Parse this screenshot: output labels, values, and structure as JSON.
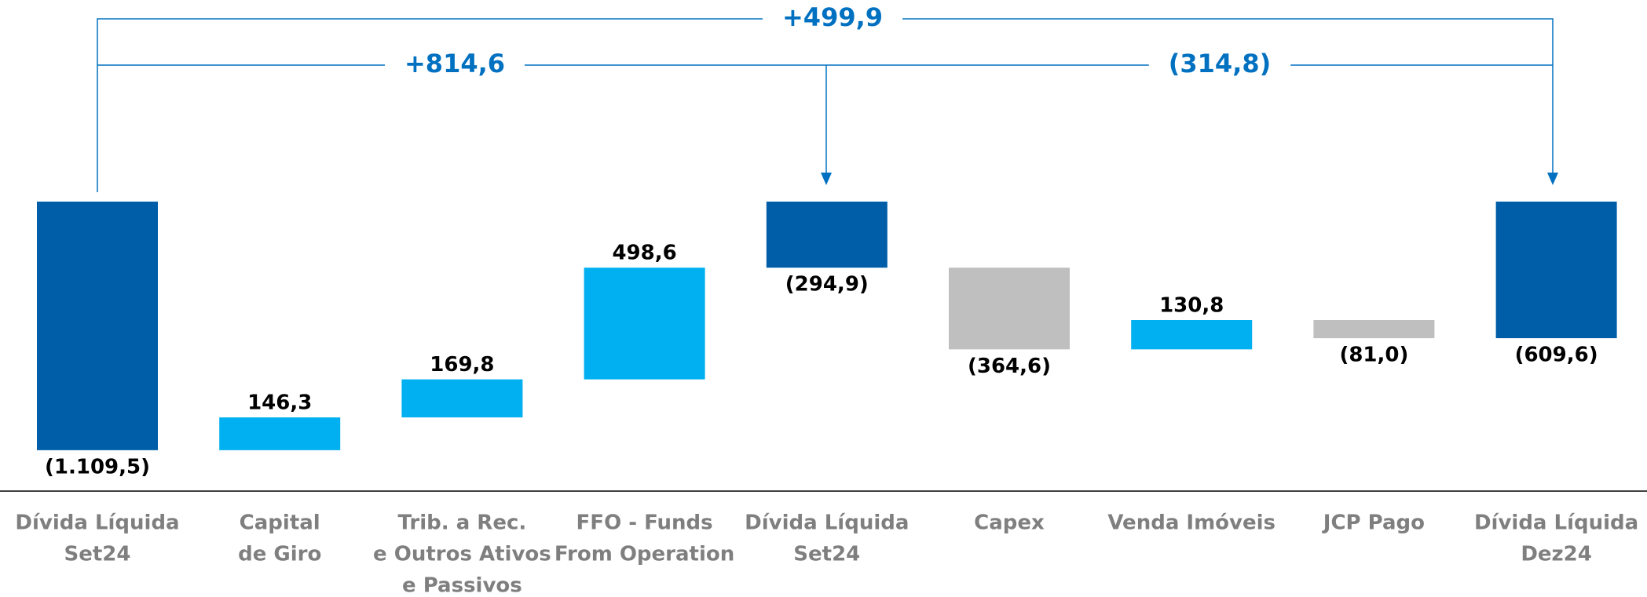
{
  "chart_data": {
    "type": "waterfall",
    "categories": [
      [
        "Dívida Líquida",
        "Set24"
      ],
      [
        "Capital",
        "de Giro"
      ],
      [
        "Trib. a Rec.",
        "e Outros Ativos",
        "e Passivos"
      ],
      [
        "FFO - Funds",
        "From Operation"
      ],
      [
        "Dívida Líquida",
        "Set24"
      ],
      [
        "Capex"
      ],
      [
        "Venda Imóveis"
      ],
      [
        "JCP Pago"
      ],
      [
        "Dívida Líquida",
        "Dez24"
      ]
    ],
    "values": [
      -1109.5,
      146.3,
      169.8,
      498.6,
      -294.9,
      -364.6,
      130.8,
      -81.0,
      -609.6
    ],
    "value_labels": [
      "(1.109,5)",
      "146,3",
      "169,8",
      "498,6",
      "(294,9)",
      "(364,6)",
      "130,8",
      "(81,0)",
      "(609,6)"
    ],
    "measure": [
      "total",
      "relative",
      "relative",
      "relative",
      "total",
      "relative",
      "relative",
      "relative",
      "total"
    ],
    "colors": {
      "total": "#005ea8",
      "increase": "#00b0f0",
      "decrease": "#bfbfbf"
    },
    "annotations": [
      "+499,9",
      "+814,6",
      "(314,8)"
    ]
  }
}
